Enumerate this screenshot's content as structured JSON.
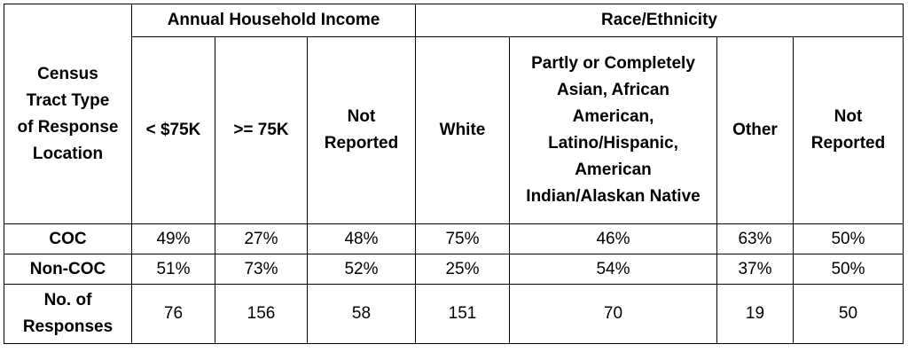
{
  "table": {
    "corner_header": "Census Tract Type of Response Location",
    "group_headers": [
      {
        "label": "Annual Household Income",
        "span": 3
      },
      {
        "label": "Race/Ethnicity",
        "span": 4
      }
    ],
    "sub_headers": [
      "< $75K",
      ">= 75K",
      "Not Reported",
      "White",
      "Partly or Completely Asian, African American, Latino/Hispanic, American Indian/Alaskan Native",
      "Other",
      "Not Reported"
    ],
    "rows": [
      {
        "label": "COC",
        "values": [
          "49%",
          "27%",
          "48%",
          "75%",
          "46%",
          "63%",
          "50%"
        ]
      },
      {
        "label": "Non-COC",
        "values": [
          "51%",
          "73%",
          "52%",
          "25%",
          "54%",
          "37%",
          "50%"
        ]
      },
      {
        "label": "No. of Responses",
        "values": [
          "76",
          "156",
          "58",
          "151",
          "70",
          "19",
          "50"
        ]
      }
    ]
  }
}
